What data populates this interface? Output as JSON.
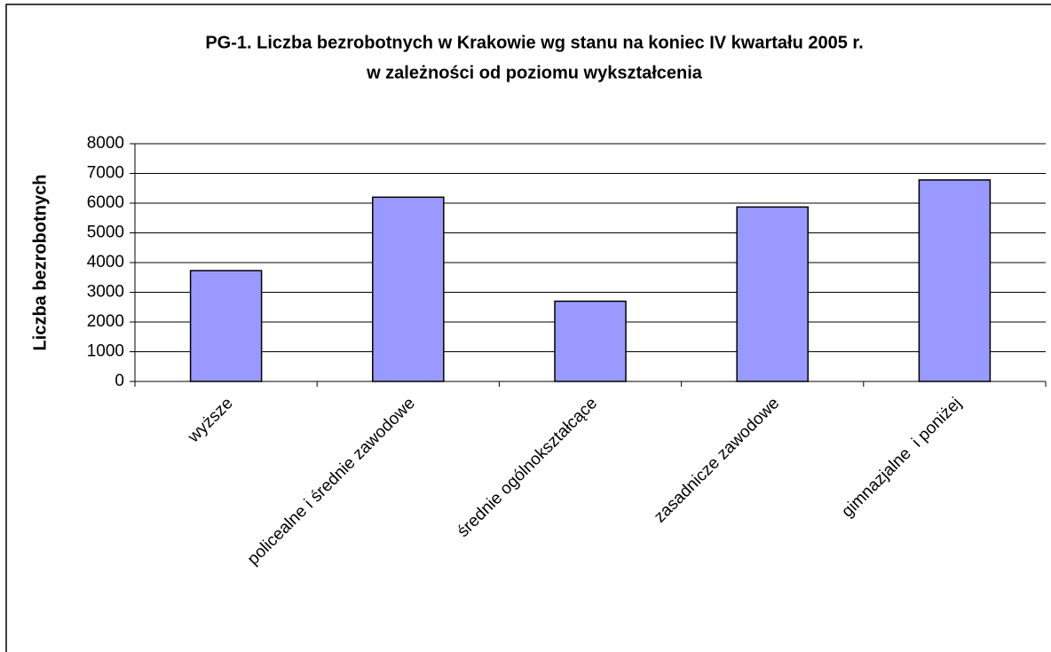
{
  "chart_data": {
    "type": "bar",
    "title": [
      "PG-1. Liczba bezrobotnych w Krakowie wg stanu na koniec IV kwartału 2005 r.",
      "w zależności od poziomu wykształcenia"
    ],
    "y_label": "Liczba bezrobotnych",
    "categories": [
      "wyższe",
      "policealne i średnie zawodowe",
      "średnie ogólnokształcące",
      "zasadnicze zawodowe",
      "gimnazjalne  i poniżej"
    ],
    "values": [
      3730,
      6200,
      2700,
      5870,
      6780
    ],
    "color": "#9999ff",
    "ylim": [
      0,
      8000
    ],
    "yticks": [
      0,
      1000,
      2000,
      3000,
      4000,
      5000,
      6000,
      7000,
      8000
    ],
    "grid": true
  }
}
